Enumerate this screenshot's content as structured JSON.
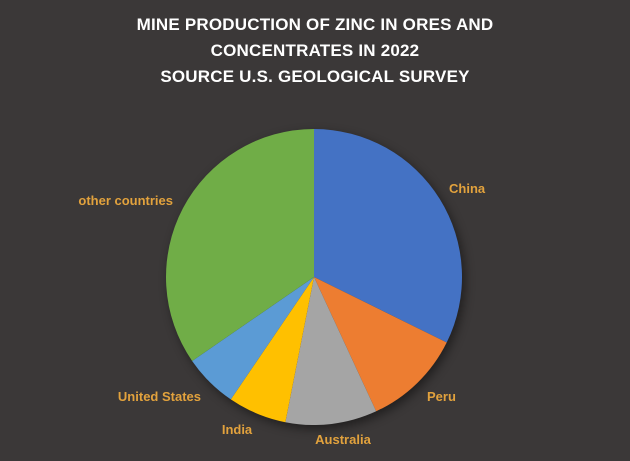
{
  "window": {
    "background": "#3B3838"
  },
  "title": {
    "lines": [
      "MINE PRODUCTION OF ZINC IN ORES AND",
      "CONCENTRATES IN 2022",
      "SOURCE U.S. GEOLOGICAL SURVEY"
    ],
    "color": "#FFFFFF"
  },
  "chart_data": {
    "type": "pie",
    "title": "MINE PRODUCTION OF ZINC IN ORES AND CONCENTRATES IN 2022 SOURCE U.S. GEOLOGICAL SURVEY",
    "legend": "none",
    "direction": "clockwise",
    "start_angle_deg_from_top": 0,
    "label_color": "#E2A23D",
    "slices": [
      {
        "label": "China",
        "percent": 32.3,
        "color": "#4472C4"
      },
      {
        "label": "Peru",
        "percent": 10.8,
        "color": "#ED7D31"
      },
      {
        "label": "Australia",
        "percent": 10.0,
        "color": "#A5A5A5"
      },
      {
        "label": "India",
        "percent": 6.4,
        "color": "#FFC000"
      },
      {
        "label": "United States",
        "percent": 5.9,
        "color": "#5B9BD5"
      },
      {
        "label": "other countries",
        "percent": 34.6,
        "color": "#70AD47"
      }
    ]
  }
}
